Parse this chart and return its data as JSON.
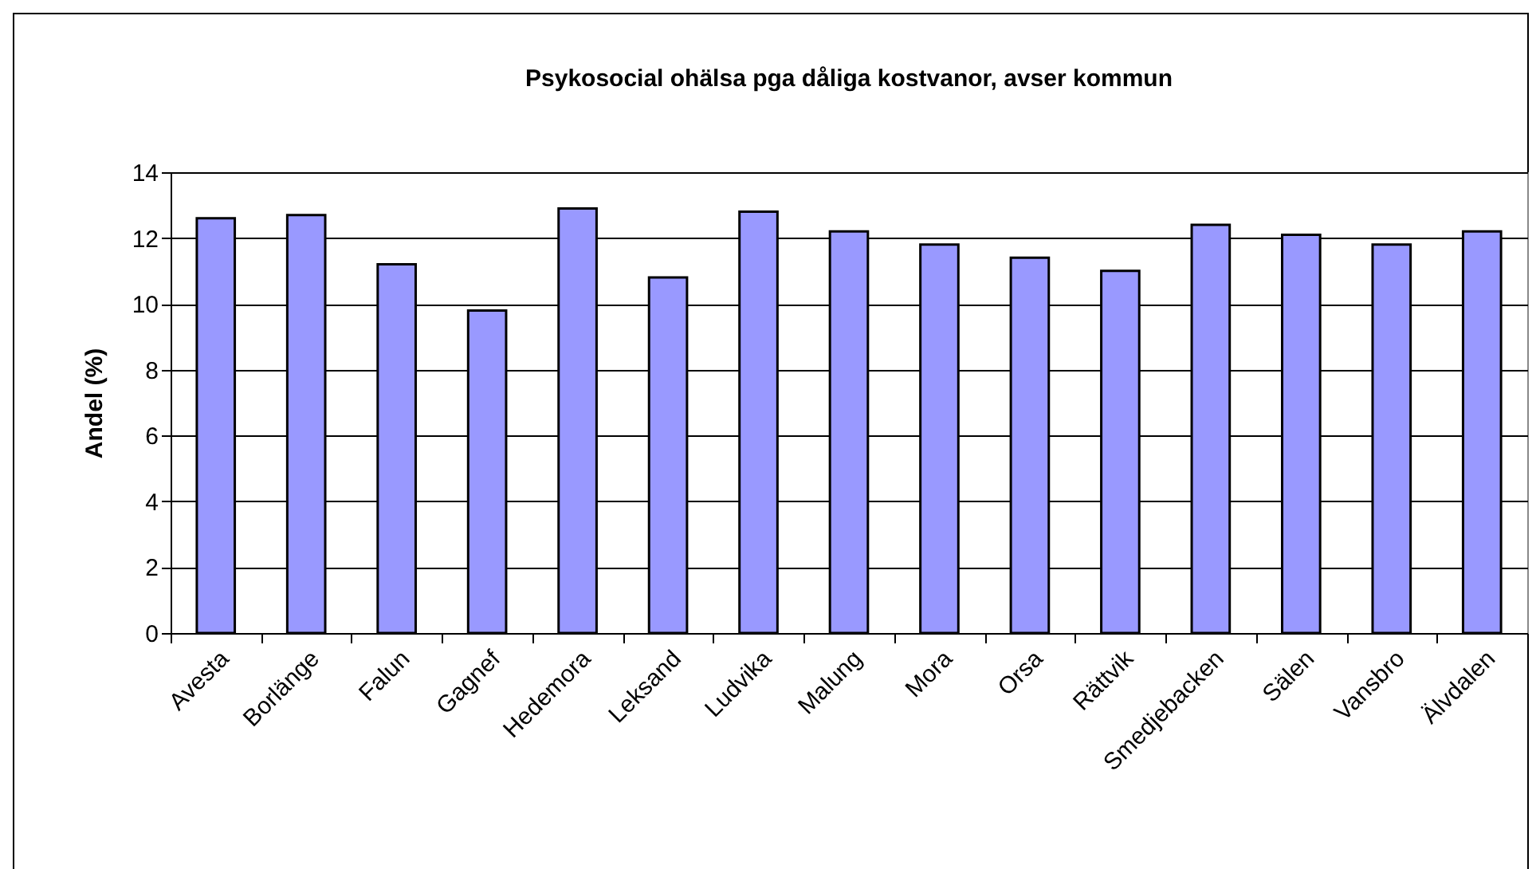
{
  "chart_data": {
    "type": "bar",
    "title": "Psykosocial ohälsa pga dåliga kostvanor, avser kommun",
    "ylabel": "Andel (%)",
    "categories": [
      "Avesta",
      "Borlänge",
      "Falun",
      "Gagnef",
      "Hedemora",
      "Leksand",
      "Ludvika",
      "Malung",
      "Mora",
      "Orsa",
      "Rättvik",
      "Smedjebacken",
      "Sälen",
      "Vansbro",
      "Älvdalen"
    ],
    "values": [
      12.6,
      12.7,
      11.2,
      9.8,
      12.9,
      10.8,
      12.8,
      12.2,
      11.8,
      11.4,
      11.0,
      12.4,
      12.1,
      11.8,
      12.2
    ],
    "color": "#9999ff",
    "ylim": [
      0,
      14
    ],
    "yticks": [
      0,
      2,
      4,
      6,
      8,
      10,
      12,
      14
    ],
    "grid": "y"
  }
}
